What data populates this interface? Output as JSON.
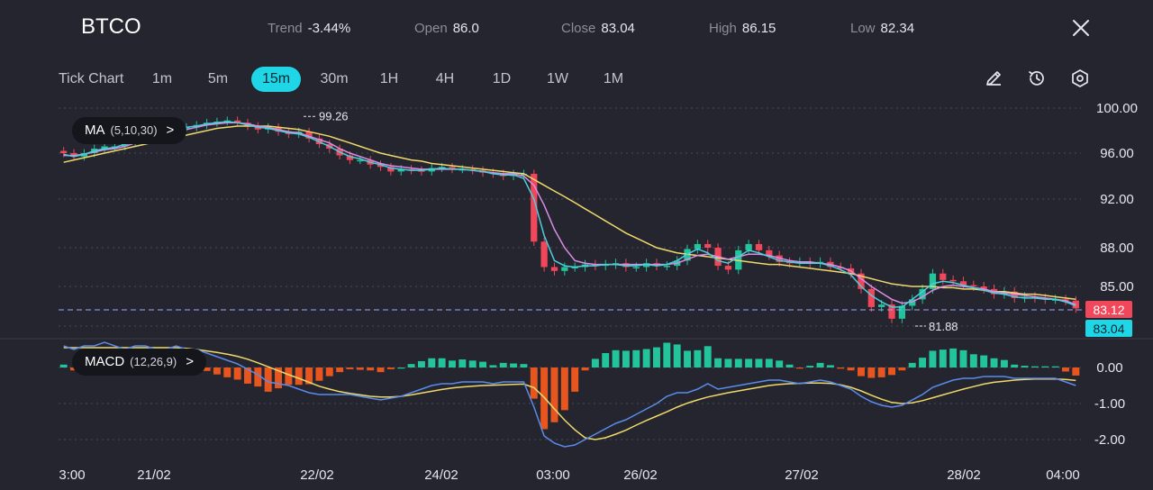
{
  "header": {
    "symbol": "BTCO",
    "stats": [
      {
        "label": "Trend",
        "value": "-3.44%"
      },
      {
        "label": "Open",
        "value": "86.0"
      },
      {
        "label": "Close",
        "value": "83.04"
      },
      {
        "label": "High",
        "value": "86.15"
      },
      {
        "label": "Low",
        "value": "82.34"
      }
    ],
    "close_icon": "close-icon"
  },
  "timeframes": {
    "tick_label": "Tick Chart",
    "items": [
      "1m",
      "5m",
      "15m",
      "30m",
      "1H",
      "4H",
      "1D",
      "1W",
      "1M"
    ],
    "active": "15m"
  },
  "tools": [
    "pencil-icon",
    "clock-icon",
    "settings-icon"
  ],
  "indicators": {
    "ma": {
      "name": "MA",
      "params": "(5,10,30)",
      "chevron": ">"
    },
    "macd": {
      "name": "MACD",
      "params": "(12,26,9)",
      "chevron": ">"
    }
  },
  "colors": {
    "background": "#25252f",
    "up": "#23c39b",
    "down": "#f0475a",
    "ma5": "#4ad0dc",
    "ma10": "#d98ee6",
    "ma30": "#efd96a",
    "macd_line": "#5a8bea",
    "signal_line": "#efd96a",
    "hist_pos": "#23c39b",
    "hist_neg": "#e8561f",
    "accent": "#1ed6e6"
  },
  "chart_data": {
    "type": "candlestick",
    "price_ticks": [
      "100.00",
      "96.00",
      "92.00",
      "88.00",
      "85.00"
    ],
    "price_tick_values": [
      100,
      96,
      92,
      88,
      85
    ],
    "macd_ticks": [
      "0.00",
      "-1.00",
      "-2.00"
    ],
    "macd_tick_values": [
      0,
      -1,
      -2
    ],
    "x_labels": [
      "3:00",
      "21/02",
      "22/02",
      "24/02",
      "03:00",
      "26/02",
      "27/02",
      "28/02",
      "04:00"
    ],
    "high_marker": {
      "label": "99.26",
      "value": 99.26
    },
    "low_marker": {
      "label": "81.88",
      "value": 81.88
    },
    "last_price_tags": [
      {
        "label": "83.12",
        "value": 83.12,
        "color": "#f0475a"
      },
      {
        "label": "83.04",
        "value": 83.04,
        "color": "#1ed6e6"
      }
    ],
    "price_series": [
      96.0,
      95.7,
      96.0,
      96.4,
      96.6,
      96.6,
      96.9,
      97.3,
      97.4,
      97.6,
      98.0,
      98.3,
      98.3,
      98.5,
      98.7,
      98.8,
      98.9,
      98.7,
      98.4,
      98.1,
      98.3,
      97.9,
      97.7,
      97.9,
      97.3,
      96.8,
      96.4,
      95.8,
      95.4,
      95.4,
      95.0,
      94.8,
      94.4,
      94.6,
      94.5,
      94.4,
      94.7,
      94.8,
      94.6,
      94.6,
      94.5,
      94.3,
      94.2,
      94.0,
      94.2,
      94.2,
      88.5,
      86.5,
      86.2,
      86.5,
      86.5,
      86.7,
      86.6,
      86.7,
      86.8,
      86.5,
      86.5,
      86.8,
      86.6,
      86.6,
      87.0,
      87.9,
      88.3,
      88.0,
      86.6,
      86.3,
      87.8,
      88.3,
      87.8,
      87.4,
      86.9,
      86.8,
      86.9,
      86.8,
      86.9,
      86.5,
      86.4,
      86.0,
      84.8,
      83.4,
      83.6,
      82.5,
      83.5,
      84.0,
      84.8,
      86.0,
      85.5,
      85.4,
      85.1,
      85.0,
      84.8,
      84.4,
      84.6,
      84.1,
      84.2,
      84.1,
      84.0,
      84.0,
      83.9,
      83.3
    ],
    "ma5": [
      95.9,
      95.7,
      95.9,
      96.2,
      96.4,
      96.5,
      96.8,
      97.1,
      97.3,
      97.5,
      97.8,
      98.1,
      98.3,
      98.4,
      98.6,
      98.7,
      98.8,
      98.7,
      98.5,
      98.3,
      98.2,
      98.0,
      97.8,
      97.7,
      97.4,
      97.0,
      96.6,
      96.1,
      95.7,
      95.5,
      95.2,
      95.0,
      94.7,
      94.6,
      94.5,
      94.5,
      94.6,
      94.7,
      94.6,
      94.6,
      94.5,
      94.4,
      94.2,
      94.1,
      94.1,
      93.8,
      92.0,
      89.0,
      87.0,
      86.6,
      86.5,
      86.6,
      86.6,
      86.7,
      86.7,
      86.6,
      86.6,
      86.7,
      86.6,
      86.7,
      87.0,
      87.5,
      87.9,
      87.6,
      87.0,
      86.8,
      87.3,
      87.8,
      87.6,
      87.3,
      87.0,
      86.9,
      86.8,
      86.8,
      86.8,
      86.6,
      86.3,
      85.9,
      85.0,
      84.3,
      83.8,
      83.4,
      83.4,
      84.0,
      84.6,
      85.2,
      85.4,
      85.3,
      85.1,
      84.9,
      84.7,
      84.5,
      84.4,
      84.2,
      84.1,
      84.1,
      84.0,
      84.0,
      83.8,
      83.5
    ],
    "ma10": [
      95.8,
      95.8,
      95.9,
      96.1,
      96.3,
      96.4,
      96.6,
      96.9,
      97.1,
      97.3,
      97.6,
      97.9,
      98.1,
      98.3,
      98.5,
      98.6,
      98.7,
      98.7,
      98.6,
      98.4,
      98.3,
      98.1,
      97.9,
      97.8,
      97.5,
      97.2,
      96.9,
      96.4,
      96.0,
      95.7,
      95.4,
      95.1,
      94.9,
      94.8,
      94.7,
      94.6,
      94.6,
      94.6,
      94.6,
      94.6,
      94.5,
      94.4,
      94.3,
      94.2,
      94.2,
      94.0,
      93.2,
      91.5,
      89.5,
      88.0,
      87.0,
      86.8,
      86.7,
      86.7,
      86.7,
      86.7,
      86.7,
      86.7,
      86.7,
      86.7,
      86.8,
      87.1,
      87.4,
      87.5,
      87.3,
      87.1,
      87.3,
      87.5,
      87.5,
      87.4,
      87.2,
      87.0,
      86.9,
      86.9,
      86.8,
      86.7,
      86.5,
      86.2,
      85.6,
      85.0,
      84.5,
      84.0,
      83.7,
      83.8,
      84.2,
      84.7,
      85.0,
      85.1,
      85.0,
      84.9,
      84.8,
      84.6,
      84.5,
      84.4,
      84.3,
      84.2,
      84.1,
      84.0,
      83.9,
      83.6
    ],
    "ma30": [
      95.2,
      95.4,
      95.6,
      95.8,
      96.0,
      96.2,
      96.4,
      96.6,
      96.8,
      97.0,
      97.2,
      97.4,
      97.6,
      97.8,
      98.0,
      98.2,
      98.3,
      98.4,
      98.4,
      98.4,
      98.4,
      98.3,
      98.2,
      98.1,
      97.9,
      97.7,
      97.5,
      97.2,
      96.9,
      96.6,
      96.3,
      96.0,
      95.8,
      95.6,
      95.4,
      95.3,
      95.1,
      95.0,
      94.9,
      94.8,
      94.7,
      94.6,
      94.5,
      94.4,
      94.3,
      94.2,
      93.7,
      93.2,
      92.7,
      92.2,
      91.7,
      91.2,
      90.7,
      90.2,
      89.7,
      89.2,
      88.8,
      88.4,
      88.0,
      87.8,
      87.6,
      87.5,
      87.4,
      87.3,
      87.2,
      87.1,
      87.0,
      86.9,
      86.8,
      86.7,
      86.7,
      86.6,
      86.5,
      86.4,
      86.3,
      86.2,
      86.1,
      86.0,
      85.8,
      85.6,
      85.4,
      85.2,
      85.1,
      85.0,
      85.0,
      85.0,
      84.9,
      84.9,
      84.8,
      84.8,
      84.7,
      84.6,
      84.6,
      84.5,
      84.4,
      84.4,
      84.3,
      84.2,
      84.1,
      84.0
    ],
    "macd": [
      0.6,
      0.5,
      0.6,
      0.6,
      0.7,
      0.6,
      0.5,
      0.6,
      0.6,
      0.5,
      0.5,
      0.6,
      0.5,
      0.5,
      0.4,
      0.3,
      0.2,
      0.1,
      -0.05,
      -0.2,
      -0.4,
      -0.45,
      -0.5,
      -0.6,
      -0.7,
      -0.75,
      -0.75,
      -0.75,
      -0.75,
      -0.8,
      -0.85,
      -0.9,
      -0.85,
      -0.8,
      -0.7,
      -0.6,
      -0.5,
      -0.45,
      -0.45,
      -0.4,
      -0.4,
      -0.4,
      -0.45,
      -0.4,
      -0.4,
      -0.4,
      -1.1,
      -1.9,
      -2.1,
      -2.2,
      -2.15,
      -2.0,
      -1.85,
      -1.7,
      -1.55,
      -1.45,
      -1.3,
      -1.15,
      -1.0,
      -0.8,
      -0.7,
      -0.7,
      -0.6,
      -0.45,
      -0.6,
      -0.55,
      -0.5,
      -0.45,
      -0.4,
      -0.35,
      -0.35,
      -0.4,
      -0.45,
      -0.4,
      -0.35,
      -0.4,
      -0.5,
      -0.6,
      -0.8,
      -0.95,
      -1.05,
      -1.1,
      -1.05,
      -0.9,
      -0.75,
      -0.55,
      -0.45,
      -0.35,
      -0.3,
      -0.3,
      -0.25,
      -0.25,
      -0.25,
      -0.3,
      -0.3,
      -0.3,
      -0.3,
      -0.3,
      -0.4,
      -0.5
    ],
    "signal": [
      0.55,
      0.55,
      0.55,
      0.55,
      0.55,
      0.55,
      0.55,
      0.55,
      0.55,
      0.55,
      0.55,
      0.55,
      0.53,
      0.5,
      0.46,
      0.42,
      0.37,
      0.31,
      0.23,
      0.13,
      0.02,
      -0.09,
      -0.2,
      -0.3,
      -0.41,
      -0.52,
      -0.6,
      -0.67,
      -0.72,
      -0.76,
      -0.8,
      -0.82,
      -0.82,
      -0.8,
      -0.76,
      -0.71,
      -0.66,
      -0.61,
      -0.57,
      -0.54,
      -0.52,
      -0.5,
      -0.49,
      -0.48,
      -0.47,
      -0.46,
      -0.56,
      -0.83,
      -1.15,
      -1.46,
      -1.73,
      -1.95,
      -2.0,
      -1.95,
      -1.85,
      -1.74,
      -1.6,
      -1.47,
      -1.35,
      -1.23,
      -1.1,
      -0.99,
      -0.9,
      -0.82,
      -0.76,
      -0.7,
      -0.65,
      -0.6,
      -0.55,
      -0.5,
      -0.47,
      -0.45,
      -0.44,
      -0.43,
      -0.43,
      -0.44,
      -0.48,
      -0.55,
      -0.65,
      -0.77,
      -0.88,
      -0.97,
      -1.0,
      -0.98,
      -0.92,
      -0.84,
      -0.76,
      -0.68,
      -0.6,
      -0.53,
      -0.46,
      -0.41,
      -0.38,
      -0.35,
      -0.33,
      -0.32,
      -0.32,
      -0.32,
      -0.33,
      -0.36
    ]
  }
}
